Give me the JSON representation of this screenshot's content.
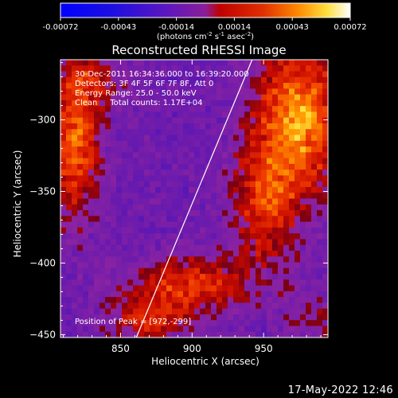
{
  "chart_data": {
    "type": "heatmap",
    "title": "Reconstructed RHESSI Image",
    "xlabel": "Heliocentric X (arcsec)",
    "ylabel": "Heliocentric Y (arcsec)",
    "xlim": [
      808,
      995
    ],
    "ylim": [
      -452,
      -258
    ],
    "xticks": [
      850,
      900,
      950
    ],
    "yticks": [
      -300,
      -350,
      -400,
      -450
    ],
    "colorbar": {
      "ticks": [
        "-0.00072",
        "-0.00043",
        "-0.00014",
        "0.00014",
        "0.00043",
        "0.00072"
      ],
      "range": [
        -0.00072,
        0.00072
      ],
      "unit_label_parts": [
        "(photons cm",
        "-2",
        " s",
        "-1",
        " asec",
        "-2",
        ")"
      ]
    },
    "annotations": [
      "30-Dec-2011 16:34:36.000 to 16:39:20.000",
      "Detectors: 3F 4F 5F 6F 7F 8F, Att 0",
      "Energy Range: 25.0 - 50.0 keV",
      "Clean     Total counts: 1.17E+04"
    ],
    "peak_label": "Position of Peak = [972,-299]",
    "peak": [
      972,
      -299
    ],
    "limb_line": [
      [
        861,
        -452
      ],
      [
        942,
        -258
      ]
    ],
    "sources": [
      {
        "x": 975,
        "y": -300,
        "sx": 22,
        "sy": 38,
        "amp": 0.00072
      },
      {
        "x": 950,
        "y": -360,
        "sx": 16,
        "sy": 30,
        "amp": 0.00045
      },
      {
        "x": 900,
        "y": -415,
        "sx": 30,
        "sy": 14,
        "amp": 0.0005
      },
      {
        "x": 870,
        "y": -440,
        "sx": 20,
        "sy": 12,
        "amp": 0.0004
      },
      {
        "x": 818,
        "y": -315,
        "sx": 14,
        "sy": 38,
        "amp": 0.0006
      },
      {
        "x": 833,
        "y": -272,
        "sx": 20,
        "sy": 12,
        "amp": 0.00025
      },
      {
        "x": 985,
        "y": -440,
        "sx": 14,
        "sy": 18,
        "amp": 0.0002
      }
    ]
  },
  "footer": {
    "timestamp": "17-May-2022 12:46"
  }
}
